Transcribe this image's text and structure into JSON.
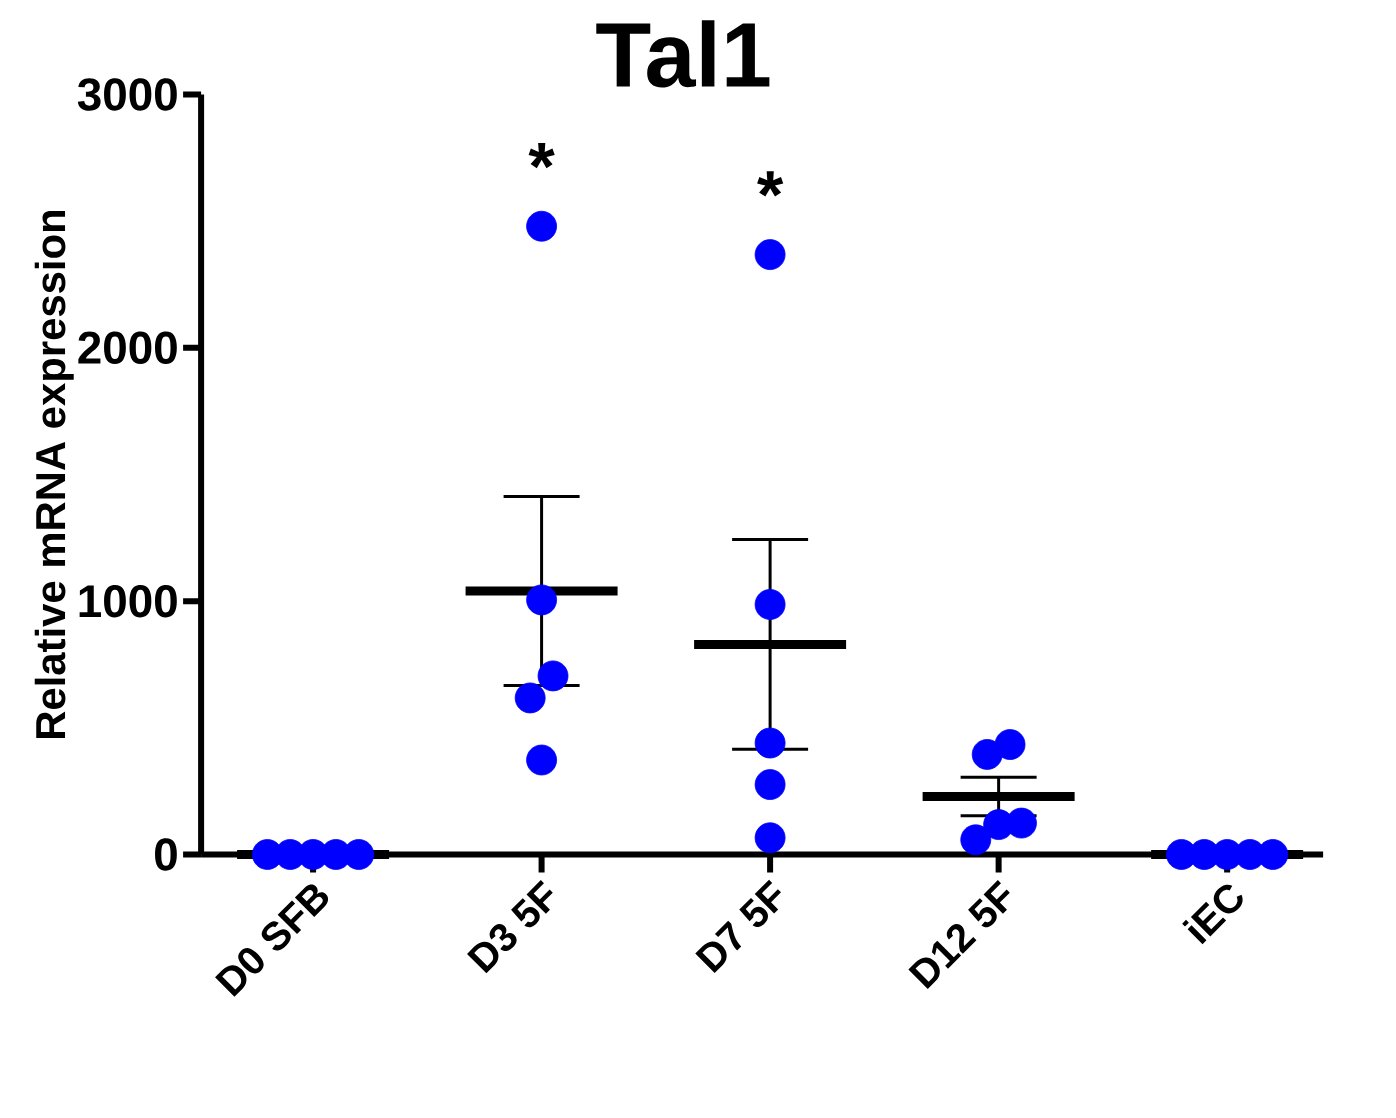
{
  "chart_data": {
    "type": "scatter",
    "title": "Tal1",
    "ylabel": "Relative mRNA expression",
    "categories": [
      "D0 SFB",
      "D3 5F",
      "D7 5F",
      "D12 5F",
      "iEC"
    ],
    "ylim": [
      0,
      3000
    ],
    "yticks": [
      0,
      1000,
      2000,
      3000
    ],
    "grid": false,
    "series": [
      {
        "marker": "circle",
        "color": "#0000ff",
        "x": [
          "D0 SFB",
          "D0 SFB",
          "D0 SFB",
          "D0 SFB",
          "D0 SFB",
          "D3 5F",
          "D3 5F",
          "D3 5F",
          "D3 5F",
          "D3 5F",
          "D7 5F",
          "D7 5F",
          "D7 5F",
          "D7 5F",
          "D7 5F",
          "D12 5F",
          "D12 5F",
          "D12 5F",
          "D12 5F",
          "D12 5F",
          "iEC",
          "iEC",
          "iEC",
          "iEC",
          "iEC"
        ],
        "values": [
          0,
          0,
          0,
          0,
          0,
          2480,
          1005,
          705,
          618,
          373,
          2368,
          987,
          440,
          276,
          66,
          434,
          395,
          124,
          58,
          118,
          0,
          0,
          0,
          0,
          0
        ]
      },
      {
        "type": "box",
        "color": "#000000",
        "boxes": [
          {
            "low": 0,
            "q1": 0,
            "median": 0,
            "q3": 0,
            "high": 0
          },
          {
            "low": 667,
            "q1": 1040,
            "median": 1040,
            "q3": 1040,
            "high": 1413
          },
          {
            "low": 415,
            "q1": 829,
            "median": 829,
            "q3": 829,
            "high": 1243
          },
          {
            "low": 153,
            "q1": 229,
            "median": 229,
            "q3": 229,
            "high": 305
          },
          {
            "low": 0,
            "q1": 0,
            "median": 0,
            "q3": 0,
            "high": 0
          }
        ]
      }
    ],
    "annotations": [
      {
        "text": "*",
        "x": "D3 5F",
        "y": 2480
      },
      {
        "text": "*",
        "x": "D7 5F",
        "y": 2368
      }
    ]
  }
}
